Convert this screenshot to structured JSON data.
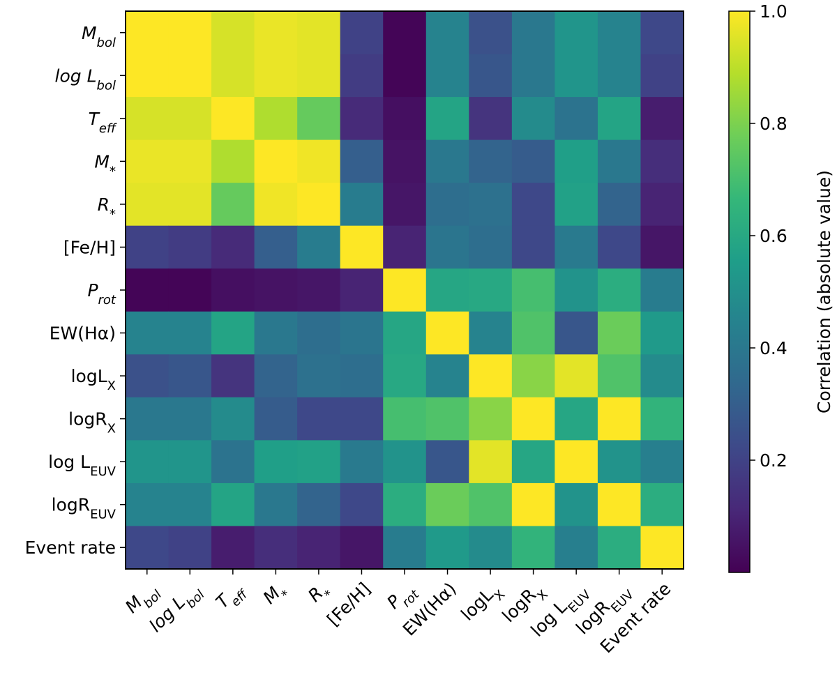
{
  "chart_data": {
    "type": "heatmap",
    "title": "",
    "labels": [
      "Mbol",
      "log Lbol",
      "Teff",
      "M*",
      "R*",
      "[Fe/H]",
      "Prot",
      "EW(Hα)",
      "logLX",
      "logRX",
      "log LEUV",
      "logREUV",
      "Event rate"
    ],
    "label_parts": [
      {
        "base": "M",
        "sub": "bol",
        "italic": true
      },
      {
        "base": "log L",
        "sub": "bol",
        "italic": true
      },
      {
        "base": "T",
        "sub": "eff",
        "italic": true
      },
      {
        "base": "M",
        "sub": "*",
        "italic": true
      },
      {
        "base": "R",
        "sub": "*",
        "italic": true
      },
      {
        "base": "[Fe/H]",
        "sub": "",
        "italic": false
      },
      {
        "base": "P",
        "sub": "rot",
        "italic": true
      },
      {
        "base": "EW(Hα)",
        "sub": "",
        "italic": false
      },
      {
        "base": "logL",
        "sub": "X",
        "italic": false
      },
      {
        "base": "logR",
        "sub": "X",
        "italic": false
      },
      {
        "base": "log L",
        "sub": "EUV",
        "italic": false
      },
      {
        "base": "logR",
        "sub": "EUV",
        "italic": false
      },
      {
        "base": "Event rate",
        "sub": "",
        "italic": false
      }
    ],
    "values": [
      [
        1.0,
        1.0,
        0.94,
        0.97,
        0.96,
        0.2,
        0.01,
        0.45,
        0.25,
        0.4,
        0.52,
        0.45,
        0.22
      ],
      [
        1.0,
        1.0,
        0.94,
        0.97,
        0.96,
        0.18,
        0.01,
        0.45,
        0.27,
        0.4,
        0.52,
        0.45,
        0.2
      ],
      [
        0.94,
        0.94,
        1.0,
        0.88,
        0.76,
        0.12,
        0.04,
        0.58,
        0.15,
        0.48,
        0.38,
        0.58,
        0.08
      ],
      [
        0.97,
        0.97,
        0.88,
        1.0,
        0.98,
        0.3,
        0.05,
        0.4,
        0.32,
        0.29,
        0.56,
        0.4,
        0.13
      ],
      [
        0.96,
        0.96,
        0.76,
        0.98,
        1.0,
        0.42,
        0.06,
        0.36,
        0.37,
        0.22,
        0.57,
        0.32,
        0.1
      ],
      [
        0.2,
        0.18,
        0.12,
        0.3,
        0.42,
        1.0,
        0.1,
        0.39,
        0.36,
        0.22,
        0.41,
        0.22,
        0.06
      ],
      [
        0.01,
        0.01,
        0.04,
        0.05,
        0.06,
        0.1,
        1.0,
        0.59,
        0.6,
        0.7,
        0.51,
        0.62,
        0.42
      ],
      [
        0.45,
        0.45,
        0.58,
        0.4,
        0.36,
        0.39,
        0.59,
        1.0,
        0.45,
        0.72,
        0.27,
        0.77,
        0.54
      ],
      [
        0.25,
        0.27,
        0.15,
        0.32,
        0.37,
        0.36,
        0.6,
        0.45,
        1.0,
        0.82,
        0.96,
        0.72,
        0.48
      ],
      [
        0.4,
        0.4,
        0.48,
        0.29,
        0.22,
        0.22,
        0.7,
        0.72,
        0.82,
        1.0,
        0.59,
        1.0,
        0.65
      ],
      [
        0.52,
        0.52,
        0.38,
        0.56,
        0.57,
        0.41,
        0.51,
        0.27,
        0.96,
        0.59,
        1.0,
        0.51,
        0.43
      ],
      [
        0.45,
        0.45,
        0.58,
        0.4,
        0.32,
        0.22,
        0.62,
        0.77,
        0.72,
        1.0,
        0.51,
        1.0,
        0.62
      ],
      [
        0.22,
        0.2,
        0.08,
        0.13,
        0.1,
        0.06,
        0.42,
        0.54,
        0.48,
        0.65,
        0.43,
        0.62,
        1.0
      ]
    ],
    "colorbar": {
      "label": "Correlation (absolute value)",
      "min": 0.0,
      "max": 1.0,
      "ticks": [
        0.2,
        0.4,
        0.6,
        0.8,
        1.0
      ],
      "tick_labels": [
        "0.2",
        "0.4",
        "0.6",
        "0.8",
        "1.0"
      ]
    },
    "colormap": "viridis",
    "colormap_stops": [
      "#440154",
      "#482878",
      "#3e4989",
      "#31688e",
      "#26828e",
      "#1f9e89",
      "#35b779",
      "#6ece58",
      "#b5de2b",
      "#fde725"
    ]
  }
}
